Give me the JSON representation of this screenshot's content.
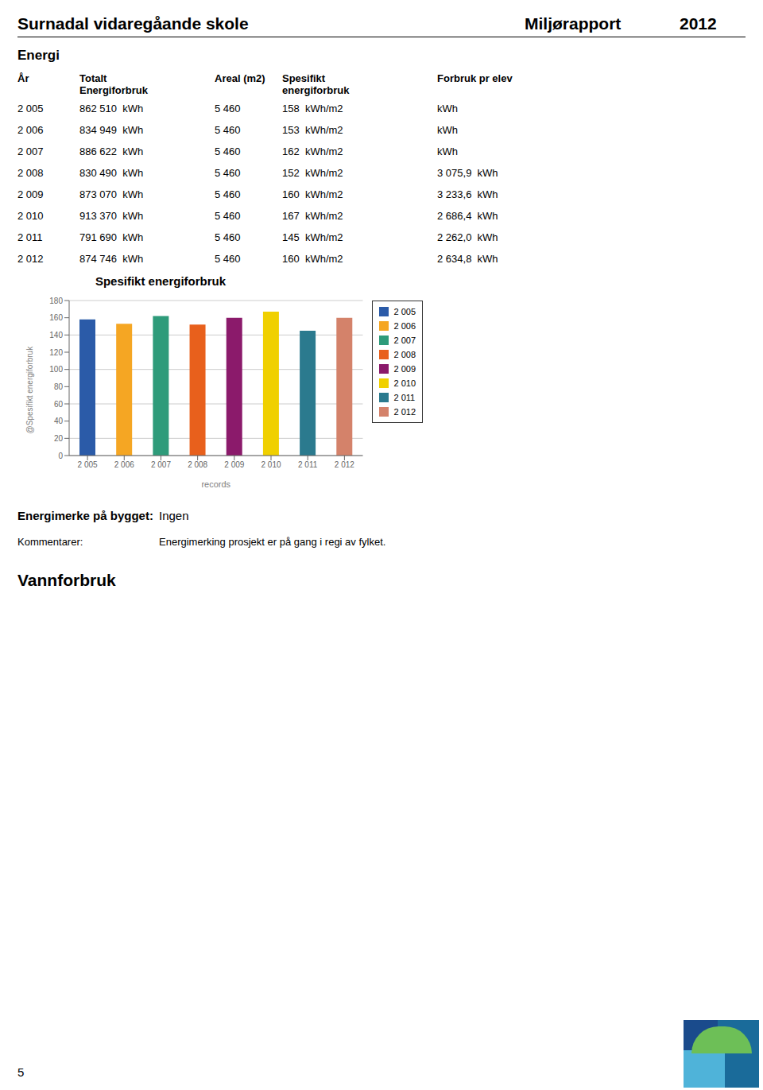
{
  "page": {
    "title_left": "Surnadal vidaregåande skole",
    "title_right": [
      "Miljørapport",
      "2012"
    ],
    "section": "Energi",
    "table": {
      "header": [
        [
          "År"
        ],
        [
          "Totalt",
          "Energiforbruk"
        ],
        [
          "Areal (m2)"
        ],
        [
          "Spesifikt",
          "energiforbruk"
        ],
        [
          "Forbruk pr elev"
        ]
      ],
      "rows": [
        [
          "2 005",
          "862 510  kWh",
          "5 460",
          "158  kWh/m2",
          "kWh"
        ],
        [
          "2 006",
          "834 949  kWh",
          "5 460",
          "153  kWh/m2",
          "kWh"
        ],
        [
          "2 007",
          "886 622  kWh",
          "5 460",
          "162  kWh/m2",
          "kWh"
        ],
        [
          "2 008",
          "830 490  kWh",
          "5 460",
          "152  kWh/m2",
          "3 075,9  kWh"
        ],
        [
          "2 009",
          "873 070  kWh",
          "5 460",
          "160  kWh/m2",
          "3 233,6  kWh"
        ],
        [
          "2 010",
          "913 370  kWh",
          "5 460",
          "167  kWh/m2",
          "2 686,4  kWh"
        ],
        [
          "2 011",
          "791 690  kWh",
          "5 460",
          "145  kWh/m2",
          "2 262,0  kWh"
        ],
        [
          "2 012",
          "874 746  kWh",
          "5 460",
          "160  kWh/m2",
          "2 634,8  kWh"
        ]
      ]
    },
    "energimerke": [
      "Energimerke på bygget:",
      "Ingen"
    ],
    "kommentarer": [
      "Kommentarer:",
      "Energimerking prosjekt er på gang i regi av fylket."
    ],
    "vannforbruk": "Vannforbruk",
    "page_number": "5"
  },
  "chart_data": {
    "type": "bar",
    "title": "Spesifikt energiforbruk",
    "x_label": "records",
    "y_label": "@Spesifikt energiforbruk",
    "categories": [
      "2 005",
      "2 006",
      "2 007",
      "2 008",
      "2 009",
      "2 010",
      "2 011",
      "2 012"
    ],
    "values": [
      158,
      153,
      162,
      152,
      160,
      167,
      145,
      160
    ],
    "colors": [
      "#2B5BA8",
      "#F5A623",
      "#2E9B7A",
      "#E8601C",
      "#8B1A6B",
      "#F0D000",
      "#2B7A8E",
      "#D4826A"
    ],
    "ylim": [
      0,
      180
    ],
    "yticks": [
      0,
      20,
      40,
      60,
      80,
      100,
      120,
      140,
      160,
      180
    ],
    "grid": true,
    "legend": "right"
  }
}
